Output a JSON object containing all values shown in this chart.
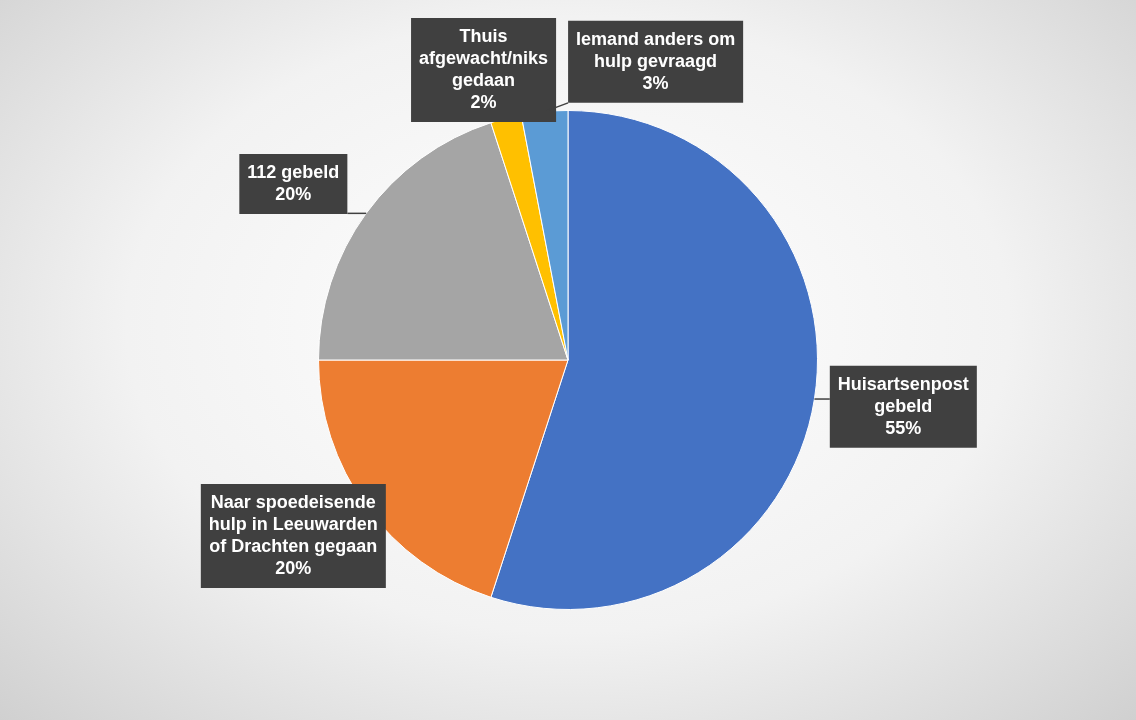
{
  "chart_data": {
    "type": "pie",
    "categories": [
      "Huisartsenpost gebeld",
      "Naar spoedeisende hulp in Leeuwarden of Drachten gegaan",
      "112 gebeld",
      "Thuis afgewacht/niks gedaan",
      "Iemand anders om hulp gevraagd"
    ],
    "values": [
      55,
      20,
      20,
      2,
      3
    ],
    "value_labels": [
      "55%",
      "20%",
      "20%",
      "2%",
      "3%"
    ],
    "colors": [
      "#4472c4",
      "#ed7d31",
      "#a5a5a5",
      "#ffc000",
      "#5b9bd5"
    ],
    "legend": false
  }
}
